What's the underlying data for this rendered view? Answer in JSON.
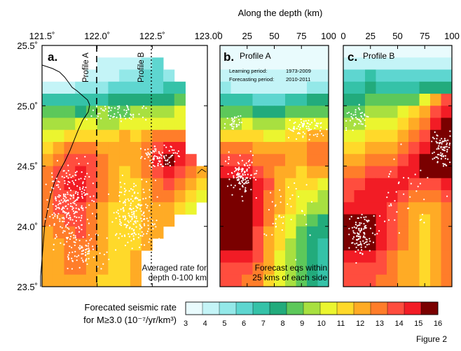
{
  "figure_label": "Figure 2",
  "top_axis_title": "Along the depth (km)",
  "colorbar": {
    "title_line1": "Forecated seismic rate",
    "title_line2": "for M≥3.0 (10⁻⁷/yr/km³)",
    "ticks": [
      "3",
      "4",
      "5",
      "6",
      "7",
      "8",
      "9",
      "10",
      "11",
      "12",
      "13",
      "14",
      "15",
      "16"
    ],
    "colors": [
      "#e9fbfd",
      "#c4f4f7",
      "#93e8e8",
      "#5ed6d0",
      "#35c2a8",
      "#22ab7c",
      "#5dc85a",
      "#a8e040",
      "#ebf52f",
      "#ffd92a",
      "#ffab25",
      "#ff7d2a",
      "#ff4d3e",
      "#f21c25",
      "#7a0000"
    ]
  },
  "panels": {
    "a": {
      "label": "a.",
      "x_ticks": [
        "121.5˚",
        "122.0˚",
        "122.5˚",
        "123.0˚"
      ],
      "y_ticks": [
        "25.5˚",
        "25.0˚",
        "24.5˚",
        "24.0˚",
        "23.5˚"
      ],
      "profile_a_label": "Profile A",
      "profile_b_label": "Profile B",
      "note_line1": "Averaged rate for",
      "note_line2": "depth 0-100 km"
    },
    "b": {
      "label": "b.",
      "title": "Profile A",
      "x_ticks": [
        "0",
        "25",
        "50",
        "75",
        "100"
      ],
      "learning_label": "Learning period:",
      "learning_value": "1973-2009",
      "forecast_label": "Forecasting period:",
      "forecast_value": "2010-2011",
      "note_line1": "Forecast eqs within",
      "note_line2": "25 kms of each side"
    },
    "c": {
      "label": "c.",
      "title": "Profile B",
      "x_ticks": [
        "0",
        "25",
        "50",
        "75",
        "100"
      ]
    }
  },
  "chart_data": [
    {
      "type": "heatmap",
      "panel": "a",
      "xlim": [
        121.5,
        123.0
      ],
      "ylim": [
        23.5,
        25.5
      ],
      "xlabel": "",
      "ylabel": "",
      "cell_size_deg": 0.1,
      "x_start": 121.5,
      "y_top": 25.5,
      "color_index_rows": [
        [
          -1,
          -1,
          -1,
          -1,
          -1,
          -1,
          -1,
          -1,
          -1,
          -1,
          -1,
          -1,
          -1,
          -1,
          -1
        ],
        [
          -1,
          -1,
          -1,
          -1,
          -1,
          1,
          1,
          1,
          1,
          2,
          3,
          -1,
          -1,
          -1,
          -1
        ],
        [
          -1,
          -1,
          -1,
          -1,
          1,
          1,
          1,
          2,
          2,
          3,
          3,
          2,
          -1,
          -1,
          -1
        ],
        [
          1,
          1,
          1,
          2,
          2,
          2,
          3,
          3,
          3,
          3,
          3,
          4,
          4,
          -1,
          -1
        ],
        [
          4,
          4,
          4,
          4,
          4,
          4,
          5,
          5,
          5,
          5,
          5,
          5,
          6,
          -1,
          -1
        ],
        [
          6,
          6,
          6,
          5,
          6,
          7,
          6,
          6,
          7,
          7,
          7,
          7,
          8,
          -1,
          -1
        ],
        [
          7,
          7,
          7,
          8,
          8,
          7,
          7,
          8,
          8,
          8,
          8,
          8,
          8,
          -1,
          -1
        ],
        [
          8,
          8,
          9,
          9,
          9,
          9,
          9,
          10,
          9,
          10,
          11,
          11,
          11,
          -1,
          -1
        ],
        [
          9,
          10,
          11,
          11,
          11,
          10,
          10,
          10,
          10,
          11,
          12,
          13,
          13,
          -1,
          -1
        ],
        [
          10,
          11,
          12,
          12,
          12,
          11,
          10,
          10,
          10,
          11,
          13,
          14,
          13,
          12,
          -1
        ],
        [
          11,
          12,
          12,
          13,
          12,
          11,
          10,
          9,
          10,
          11,
          12,
          13,
          12,
          11,
          10
        ],
        [
          11,
          12,
          13,
          13,
          12,
          11,
          10,
          9,
          9,
          10,
          11,
          12,
          11,
          10,
          9
        ],
        [
          11,
          12,
          12,
          13,
          12,
          11,
          10,
          9,
          9,
          10,
          11,
          11,
          10,
          9,
          8
        ],
        [
          11,
          12,
          12,
          12,
          11,
          10,
          9,
          9,
          9,
          10,
          10,
          10,
          9,
          8,
          -1
        ],
        [
          11,
          11,
          12,
          12,
          11,
          10,
          9,
          9,
          9,
          10,
          10,
          10,
          -1,
          -1,
          -1
        ],
        [
          10,
          11,
          11,
          12,
          11,
          10,
          9,
          9,
          9,
          10,
          10,
          -1,
          -1,
          -1,
          -1
        ],
        [
          10,
          10,
          11,
          11,
          11,
          10,
          9,
          9,
          9,
          10,
          -1,
          -1,
          -1,
          -1,
          -1
        ],
        [
          10,
          10,
          11,
          11,
          10,
          10,
          9,
          9,
          10,
          -1,
          -1,
          -1,
          -1,
          -1,
          -1
        ],
        [
          10,
          10,
          11,
          11,
          10,
          10,
          9,
          9,
          10,
          -1,
          -1,
          -1,
          -1,
          -1,
          -1
        ],
        [
          10,
          10,
          10,
          10,
          10,
          9,
          9,
          9,
          10,
          -1,
          -1,
          -1,
          -1,
          -1,
          -1
        ]
      ]
    },
    {
      "type": "heatmap",
      "panel": "b",
      "xlim": [
        0,
        100
      ],
      "ylim": [
        23.5,
        25.5
      ],
      "x_start": 0,
      "y_top": 25.5,
      "cell_size": [
        10,
        0.1
      ],
      "color_index_rows": [
        [
          0,
          0,
          0,
          0,
          0,
          0,
          0,
          0,
          0,
          0
        ],
        [
          0,
          0,
          0,
          0,
          0,
          0,
          0,
          0,
          0,
          0
        ],
        [
          1,
          1,
          1,
          1,
          1,
          1,
          1,
          1,
          1,
          1
        ],
        [
          2,
          1,
          1,
          1,
          1,
          1,
          1,
          1,
          2,
          2
        ],
        [
          4,
          4,
          4,
          3,
          3,
          3,
          4,
          4,
          5,
          5
        ],
        [
          6,
          6,
          6,
          5,
          5,
          5,
          6,
          6,
          6,
          6
        ],
        [
          7,
          7,
          8,
          7,
          7,
          7,
          8,
          8,
          8,
          8
        ],
        [
          9,
          9,
          9,
          9,
          8,
          8,
          9,
          9,
          10,
          10
        ],
        [
          11,
          11,
          11,
          10,
          10,
          10,
          10,
          10,
          11,
          11
        ],
        [
          12,
          12,
          12,
          11,
          11,
          11,
          10,
          10,
          11,
          11
        ],
        [
          13,
          13,
          13,
          12,
          11,
          10,
          10,
          9,
          10,
          10
        ],
        [
          14,
          14,
          14,
          13,
          12,
          10,
          9,
          9,
          9,
          8
        ],
        [
          14,
          14,
          14,
          13,
          11,
          10,
          9,
          8,
          8,
          7
        ],
        [
          14,
          14,
          14,
          13,
          11,
          10,
          9,
          8,
          7,
          7
        ],
        [
          14,
          14,
          14,
          13,
          11,
          9,
          8,
          7,
          6,
          5
        ],
        [
          14,
          14,
          14,
          12,
          10,
          9,
          8,
          6,
          5,
          5
        ],
        [
          14,
          14,
          14,
          12,
          10,
          9,
          7,
          6,
          5,
          4
        ],
        [
          13,
          13,
          13,
          12,
          10,
          8,
          7,
          6,
          5,
          4
        ],
        [
          12,
          12,
          12,
          11,
          10,
          8,
          7,
          6,
          5,
          4
        ],
        [
          12,
          12,
          11,
          11,
          9,
          8,
          7,
          6,
          5,
          4
        ]
      ]
    },
    {
      "type": "heatmap",
      "panel": "c",
      "xlim": [
        0,
        100
      ],
      "ylim": [
        23.5,
        25.5
      ],
      "x_start": 0,
      "y_top": 25.5,
      "cell_size": [
        10,
        0.1
      ],
      "color_index_rows": [
        [
          0,
          0,
          0,
          0,
          0,
          0,
          0,
          0,
          0,
          0
        ],
        [
          1,
          1,
          1,
          1,
          1,
          1,
          1,
          1,
          1,
          1
        ],
        [
          3,
          3,
          4,
          3,
          3,
          3,
          3,
          3,
          3,
          3
        ],
        [
          4,
          4,
          5,
          4,
          4,
          4,
          4,
          5,
          5,
          5
        ],
        [
          5,
          5,
          6,
          6,
          6,
          6,
          6,
          8,
          10,
          12
        ],
        [
          6,
          6,
          7,
          7,
          7,
          8,
          9,
          10,
          12,
          13
        ],
        [
          7,
          7,
          8,
          8,
          8,
          9,
          10,
          11,
          13,
          14
        ],
        [
          8,
          8,
          9,
          9,
          9,
          10,
          11,
          12,
          14,
          14
        ],
        [
          9,
          9,
          10,
          10,
          10,
          11,
          12,
          13,
          14,
          14
        ],
        [
          10,
          10,
          11,
          11,
          11,
          12,
          13,
          14,
          14,
          14
        ],
        [
          11,
          11,
          12,
          12,
          12,
          13,
          13,
          14,
          14,
          14
        ],
        [
          12,
          12,
          13,
          13,
          13,
          13,
          12,
          12,
          12,
          13
        ],
        [
          12,
          13,
          13,
          13,
          13,
          12,
          11,
          11,
          11,
          12
        ],
        [
          13,
          13,
          13,
          13,
          12,
          11,
          10,
          10,
          10,
          11
        ],
        [
          14,
          14,
          14,
          13,
          12,
          11,
          10,
          9,
          10,
          11
        ],
        [
          14,
          14,
          14,
          13,
          12,
          11,
          10,
          9,
          10,
          11
        ],
        [
          14,
          14,
          14,
          13,
          12,
          11,
          10,
          9,
          10,
          11
        ],
        [
          13,
          13,
          13,
          12,
          11,
          10,
          10,
          9,
          10,
          11
        ],
        [
          12,
          12,
          12,
          12,
          11,
          10,
          10,
          9,
          10,
          11
        ],
        [
          12,
          12,
          12,
          11,
          11,
          10,
          10,
          9,
          10,
          11
        ]
      ]
    }
  ]
}
